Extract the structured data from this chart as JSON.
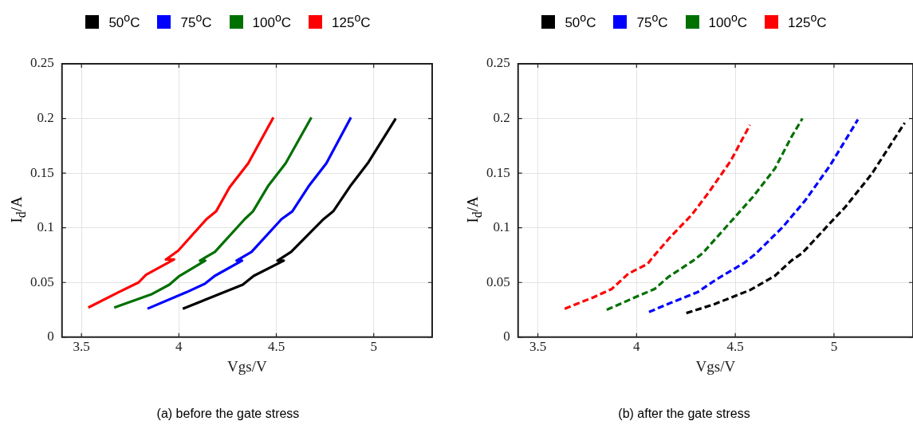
{
  "chart_data": [
    {
      "type": "line",
      "title": "(a) before the gate stress",
      "xlabel": "Vgs/V",
      "ylabel": "I$_{d}$/A",
      "xlim": [
        3.4,
        5.3
      ],
      "xticks": [
        3.5,
        4,
        4.5,
        5
      ],
      "ylim": [
        0,
        0.25
      ],
      "yticks": [
        0,
        0.05,
        0.1,
        0.15,
        0.2,
        0.25
      ],
      "grid": true,
      "legend": "top",
      "line_style": "solid",
      "series": [
        {
          "name": "50$^{o}$C",
          "color": "#000000",
          "x": [
            4.02,
            4.328,
            4.384,
            4.538,
            4.506,
            4.576,
            4.743,
            4.792,
            4.883,
            4.973,
            5.113
          ],
          "values": [
            0.026,
            0.048,
            0.056,
            0.07,
            0.07,
            0.078,
            0.108,
            0.115,
            0.139,
            0.16,
            0.2
          ]
        },
        {
          "name": "75$^{o}$C",
          "color": "#0000ff",
          "x": [
            3.839,
            4.038,
            4.135,
            4.184,
            4.324,
            4.296,
            4.373,
            4.527,
            4.582,
            4.666,
            4.757,
            4.883
          ],
          "values": [
            0.026,
            0.041,
            0.049,
            0.056,
            0.07,
            0.07,
            0.078,
            0.108,
            0.115,
            0.138,
            0.159,
            0.201
          ]
        },
        {
          "name": "100$^{o}$C",
          "color": "#007000",
          "x": [
            3.668,
            3.857,
            3.951,
            4.003,
            4.135,
            4.108,
            4.185,
            4.338,
            4.38,
            4.457,
            4.548,
            4.68
          ],
          "values": [
            0.027,
            0.039,
            0.048,
            0.056,
            0.07,
            0.07,
            0.078,
            0.108,
            0.115,
            0.138,
            0.159,
            0.201
          ]
        },
        {
          "name": "125$^{o}$C",
          "color": "#ff0000",
          "x": [
            3.535,
            3.689,
            3.793,
            3.831,
            3.975,
            3.933,
            3.996,
            4.142,
            4.191,
            4.26,
            4.356,
            4.485
          ],
          "values": [
            0.027,
            0.041,
            0.05,
            0.057,
            0.071,
            0.071,
            0.079,
            0.108,
            0.115,
            0.137,
            0.159,
            0.201
          ]
        }
      ]
    },
    {
      "type": "line",
      "title": "(b) after the gate stress",
      "xlabel": "Vgs/V",
      "ylabel": "I$_{d}$/A",
      "xlim": [
        3.4,
        5.4
      ],
      "xticks": [
        3.5,
        4,
        4.5,
        5
      ],
      "ylim": [
        0,
        0.25
      ],
      "yticks": [
        0,
        0.05,
        0.1,
        0.15,
        0.2,
        0.25
      ],
      "grid": true,
      "legend": "top",
      "line_style": "dashed",
      "series": [
        {
          "name": "50$^{o}$C",
          "color": "#000000",
          "x": [
            4.252,
            4.392,
            4.574,
            4.7,
            4.784,
            4.84,
            4.994,
            5.057,
            5.19,
            5.358
          ],
          "values": [
            0.022,
            0.03,
            0.043,
            0.056,
            0.07,
            0.077,
            0.107,
            0.119,
            0.149,
            0.196
          ]
        },
        {
          "name": "75$^{o}$C",
          "color": "#0000ff",
          "x": [
            4.063,
            4.168,
            4.308,
            4.406,
            4.546,
            4.602,
            4.742,
            4.854,
            4.98,
            5.121
          ],
          "values": [
            0.023,
            0.031,
            0.041,
            0.053,
            0.068,
            0.076,
            0.101,
            0.125,
            0.157,
            0.199
          ]
        },
        {
          "name": "100$^{o}$C",
          "color": "#007000",
          "x": [
            3.849,
            4.0,
            4.091,
            4.161,
            4.287,
            4.336,
            4.42,
            4.504,
            4.588,
            4.7,
            4.784,
            4.84
          ],
          "values": [
            0.025,
            0.037,
            0.044,
            0.055,
            0.07,
            0.077,
            0.094,
            0.111,
            0.128,
            0.154,
            0.183,
            0.2
          ]
        },
        {
          "name": "125$^{o}$C",
          "color": "#ff0000",
          "x": [
            3.636,
            3.776,
            3.874,
            3.958,
            4.056,
            4.077,
            4.168,
            4.28,
            4.364,
            4.476,
            4.574
          ],
          "values": [
            0.026,
            0.036,
            0.044,
            0.058,
            0.067,
            0.072,
            0.091,
            0.112,
            0.132,
            0.161,
            0.194
          ]
        }
      ]
    }
  ]
}
